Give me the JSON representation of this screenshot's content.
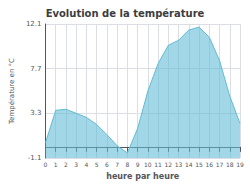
{
  "chart_data": {
    "type": "area",
    "title": "Evolution de la température",
    "xlabel": "heure par heure",
    "ylabel": "Température en °C",
    "x": [
      0,
      1,
      2,
      3,
      4,
      5,
      6,
      7,
      8,
      9,
      10,
      11,
      12,
      13,
      14,
      15,
      16,
      17,
      18,
      19
    ],
    "values": [
      0.4,
      3.6,
      3.7,
      3.3,
      2.9,
      2.2,
      1.2,
      0.1,
      -0.6,
      1.8,
      5.5,
      8.2,
      10.0,
      10.5,
      11.5,
      11.8,
      10.8,
      8.5,
      5.0,
      2.3
    ],
    "color": "#62bcd6",
    "xlim": [
      0,
      19
    ],
    "xticks": [
      0,
      1,
      2,
      3,
      4,
      5,
      6,
      7,
      8,
      9,
      10,
      11,
      12,
      13,
      14,
      15,
      16,
      17,
      18,
      19
    ],
    "ylim": [
      -1.1,
      12.1
    ],
    "yticks": [
      -1.1,
      3.3,
      7.7,
      12.1
    ],
    "grid": true
  }
}
